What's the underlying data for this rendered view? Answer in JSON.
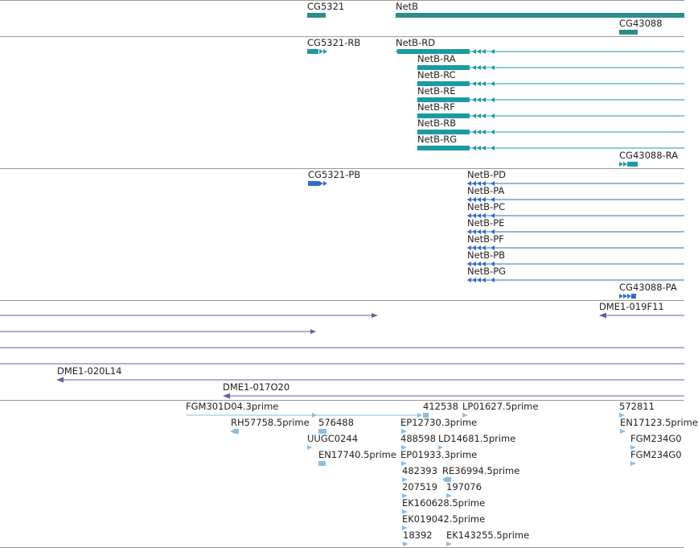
{
  "colors": {
    "gene": "#2e8b8b",
    "transcript": "#1a9aa5",
    "protein": "#2e6cc7",
    "clone": "#7656a8",
    "est": "#8fbde2",
    "divider": "#9a9a9a",
    "text": "#222222"
  },
  "labels": {
    "cg5321": "CG5321",
    "netb": "NetB",
    "cg43088": "CG43088",
    "cg5321_rb": "CG5321-RB",
    "netb_rd": "NetB-RD",
    "netb_ra": "NetB-RA",
    "netb_rc": "NetB-RC",
    "netb_re": "NetB-RE",
    "netb_rf": "NetB-RF",
    "netb_rb": "NetB-RB",
    "netb_rg": "NetB-RG",
    "cg43088_ra": "CG43088-RA",
    "cg5321_pb": "CG5321-PB",
    "netb_pd": "NetB-PD",
    "netb_pa": "NetB-PA",
    "netb_pc": "NetB-PC",
    "netb_pe": "NetB-PE",
    "netb_pf": "NetB-PF",
    "netb_pb": "NetB-PB",
    "netb_pg": "NetB-PG",
    "cg43088_pa": "CG43088-PA",
    "dme1_019f11": "DME1-019F11",
    "dme1_020l14": "DME1-020L14",
    "dme1_017o20": "DME1-017O20",
    "fgm301d04": "FGM301D04.3prime",
    "c412538": "412538",
    "lp01627": "LP01627.5prime",
    "c572811": "572811",
    "rh57758": "RH57758.5prime",
    "c576488": "576488",
    "ep12730": "EP12730.3prime",
    "en17123": "EN17123.5prime",
    "uugc0244": "UUGC0244",
    "c488598": "488598",
    "ld14681": "LD14681.5prime",
    "fgm234g0_a": "FGM234G0",
    "en17740": "EN17740.5prime",
    "ep01933": "EP01933.3prime",
    "fgm234g0_b": "FGM234G0",
    "c482393": "482393",
    "re36994": "RE36994.5prime",
    "c207519": "207519",
    "c197076": "197076",
    "ek160628": "EK160628.5prime",
    "ek019042": "EK019042.5prime",
    "c18392": "18392",
    "ek143255": "EK143255.5prime"
  }
}
